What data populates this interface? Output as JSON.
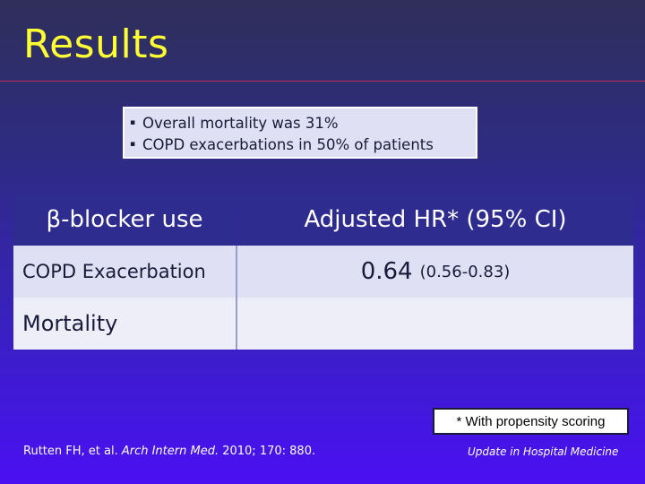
{
  "slide": {
    "title": "Results",
    "bullets": [
      "Overall mortality was 31%",
      "COPD exacerbations in 50% of patients"
    ],
    "bullet_marker": "▪"
  },
  "table": {
    "header": [
      "β-blocker use",
      "Adjusted HR* (95% CI)"
    ],
    "rows": [
      {
        "label": "COPD Exacerbation",
        "hr": "0.64",
        "ci": "(0.56-0.83)"
      },
      {
        "label": "Mortality",
        "hr": "",
        "ci": ""
      }
    ]
  },
  "footnote": "* With propensity scoring",
  "citation": {
    "authors": "Rutten FH, et al. ",
    "journal": "Arch Intern Med.",
    "details": " 2010; 170: 880."
  },
  "brand": "Update in Hospital Medicine",
  "colors": {
    "title": "#ffff33",
    "rule": "#b7315f",
    "header_bg": "#2f2c8f",
    "row_bg": "#dfe0f3"
  }
}
